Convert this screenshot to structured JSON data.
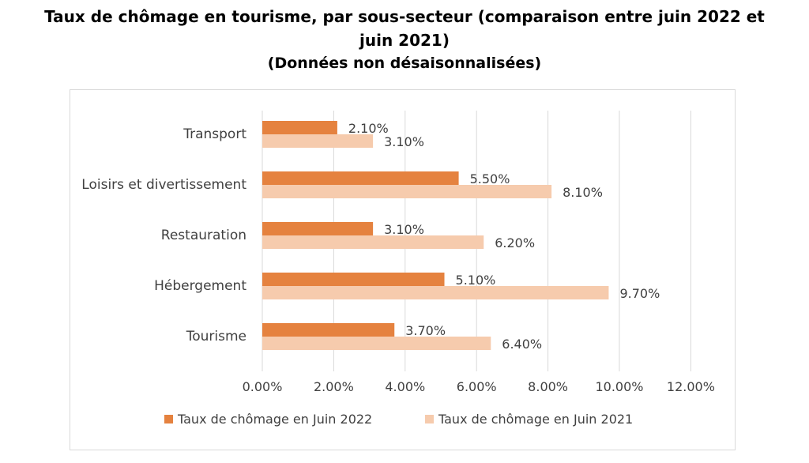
{
  "title": {
    "line1": "Taux de chômage en tourisme, par sous-secteur (comparaison entre juin  2022 et",
    "line2": "juin  2021)",
    "line3": "(Données non désaisonnalisées)"
  },
  "chart_data": {
    "type": "bar",
    "orientation": "horizontal",
    "categories": [
      "Transport",
      "Loisirs et divertissement",
      "Restauration",
      "Hébergement",
      "Tourisme"
    ],
    "series": [
      {
        "name": "Taux de chômage en Juin 2022",
        "values": [
          2.1,
          5.5,
          3.1,
          5.1,
          3.7
        ],
        "labels": [
          "2.10%",
          "5.50%",
          "3.10%",
          "5.10%",
          "3.70%"
        ],
        "color": "#e5823f"
      },
      {
        "name": "Taux de chômage en Juin 2021",
        "values": [
          3.1,
          8.1,
          6.2,
          9.7,
          6.4
        ],
        "labels": [
          "3.10%",
          "8.10%",
          "6.20%",
          "9.70%",
          "6.40%"
        ],
        "color": "#f6cbad"
      }
    ],
    "xlim": [
      0,
      12
    ],
    "xticks": [
      0,
      2,
      4,
      6,
      8,
      10,
      12
    ],
    "xtick_labels": [
      "0.00%",
      "2.00%",
      "4.00%",
      "6.00%",
      "8.00%",
      "10.00%",
      "12.00%"
    ],
    "gridlines": "vertical",
    "legend_position": "bottom"
  }
}
